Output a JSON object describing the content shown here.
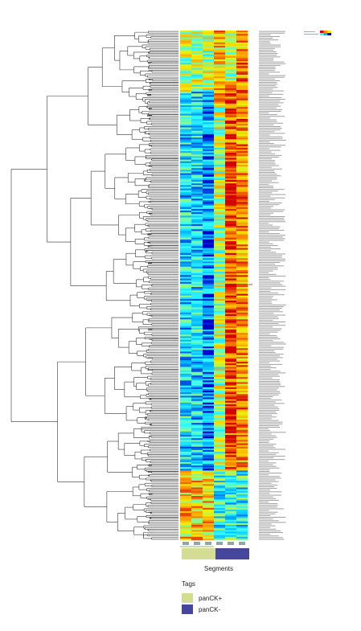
{
  "chart_data": {
    "type": "heatmap",
    "title": "",
    "column_count": 6,
    "row_count": 300,
    "colorscale": [
      "#0000c8",
      "#00b4ff",
      "#33ffff",
      "#f0f000",
      "#ff9600",
      "#d20000"
    ],
    "column_groups": [
      {
        "segment": "panCK+",
        "columns": [
          0,
          1,
          2
        ]
      },
      {
        "segment": "panCK-",
        "columns": [
          3,
          4,
          5
        ]
      }
    ],
    "dendrogram": "rows clustered (hierarchical)",
    "value_range": [
      0,
      1
    ]
  },
  "segments": {
    "label": "Segments",
    "bar": [
      "panCK+",
      "panCK-"
    ]
  },
  "legend": {
    "title": "Tags",
    "items": [
      {
        "label": "panCK+",
        "color": "#d5dc94"
      },
      {
        "label": "panCK-",
        "color": "#46479a"
      }
    ]
  },
  "colors": {
    "pancK_pos": "#d5dc94",
    "pancK_neg": "#46479a",
    "dendrogram_line": "#333333"
  }
}
